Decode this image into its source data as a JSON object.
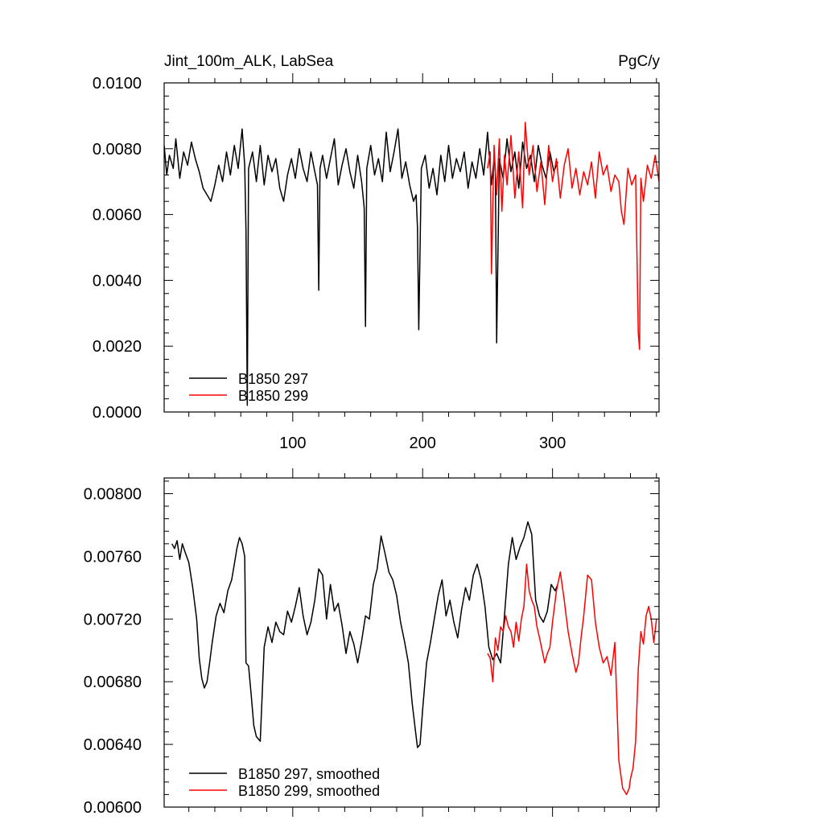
{
  "chart_data": [
    {
      "type": "line",
      "title_left": "Jint_100m_ALK, LabSea",
      "title_right": "PgC/y",
      "xlim": [
        1,
        382
      ],
      "ylim": [
        0.0,
        0.01
      ],
      "x_ticks": [
        100,
        200,
        300
      ],
      "x_tick_labels": [
        "100",
        "200",
        "300"
      ],
      "y_ticks": [
        0.0,
        0.002,
        0.004,
        0.006,
        0.008,
        0.01
      ],
      "y_tick_labels": [
        "0.0000",
        "0.0020",
        "0.0040",
        "0.0060",
        "0.0080",
        "0.0100"
      ],
      "legend_position": "bottom-left",
      "series": [
        {
          "name": "B1850 297",
          "color": "#000000",
          "x": [
            1,
            3,
            5,
            8,
            10,
            13,
            16,
            19,
            22,
            25,
            28,
            31,
            34,
            37,
            40,
            43,
            46,
            49,
            52,
            55,
            58,
            61,
            63,
            64,
            65,
            66,
            69,
            72,
            75,
            78,
            81,
            84,
            87,
            90,
            93,
            96,
            99,
            102,
            105,
            108,
            111,
            114,
            117,
            119,
            120,
            121,
            123,
            126,
            129,
            132,
            135,
            138,
            141,
            144,
            147,
            150,
            153,
            155,
            156,
            157,
            160,
            163,
            166,
            169,
            172,
            175,
            178,
            181,
            184,
            187,
            190,
            193,
            195,
            196,
            197,
            199,
            202,
            205,
            208,
            211,
            214,
            217,
            220,
            223,
            226,
            229,
            232,
            235,
            238,
            241,
            244,
            247,
            250,
            253,
            255,
            256,
            257,
            259,
            262,
            265,
            268,
            271,
            274,
            277,
            280,
            283,
            286,
            289,
            292,
            295,
            298,
            301,
            304
          ],
          "values": [
            0.0081,
            0.0072,
            0.0078,
            0.0074,
            0.0083,
            0.0071,
            0.0079,
            0.0075,
            0.0082,
            0.0077,
            0.0073,
            0.0068,
            0.0066,
            0.0064,
            0.0069,
            0.0075,
            0.007,
            0.0079,
            0.0072,
            0.0081,
            0.0074,
            0.0086,
            0.0075,
            0.0055,
            0.0002,
            0.0074,
            0.0079,
            0.007,
            0.0081,
            0.0069,
            0.0078,
            0.0073,
            0.0077,
            0.0068,
            0.0064,
            0.0072,
            0.0077,
            0.0071,
            0.008,
            0.0074,
            0.007,
            0.0079,
            0.0073,
            0.0069,
            0.0037,
            0.0074,
            0.0078,
            0.0071,
            0.0077,
            0.0083,
            0.0069,
            0.0075,
            0.008,
            0.0073,
            0.0068,
            0.0078,
            0.007,
            0.0062,
            0.0026,
            0.0074,
            0.0081,
            0.0072,
            0.0077,
            0.007,
            0.0085,
            0.0073,
            0.0079,
            0.0086,
            0.0071,
            0.0076,
            0.0069,
            0.0064,
            0.0066,
            0.0056,
            0.0025,
            0.0074,
            0.0078,
            0.0068,
            0.0074,
            0.0066,
            0.0078,
            0.007,
            0.0081,
            0.0071,
            0.0077,
            0.0073,
            0.0079,
            0.0068,
            0.0076,
            0.0071,
            0.008,
            0.0072,
            0.0085,
            0.0069,
            0.0077,
            0.0073,
            0.0021,
            0.0077,
            0.0071,
            0.0083,
            0.0073,
            0.0079,
            0.0068,
            0.0082,
            0.0074,
            0.0078,
            0.007,
            0.0081,
            0.0075,
            0.0071,
            0.0079,
            0.0073,
            0.0076
          ]
        },
        {
          "name": "B1850 299",
          "color": "#ff0000",
          "x": [
            250,
            252,
            253,
            255,
            257,
            259,
            261,
            263,
            265,
            268,
            271,
            274,
            277,
            279,
            282,
            285,
            288,
            291,
            294,
            297,
            300,
            303,
            306,
            309,
            312,
            315,
            318,
            321,
            324,
            327,
            330,
            333,
            336,
            339,
            342,
            345,
            348,
            351,
            353,
            355,
            358,
            361,
            364,
            366,
            367,
            368,
            370,
            373,
            376,
            379,
            382
          ],
          "values": [
            0.0074,
            0.0079,
            0.0042,
            0.0081,
            0.0066,
            0.0083,
            0.0061,
            0.0078,
            0.0069,
            0.0084,
            0.0065,
            0.0079,
            0.0062,
            0.0088,
            0.0072,
            0.0081,
            0.0067,
            0.0076,
            0.0063,
            0.0081,
            0.007,
            0.0077,
            0.0065,
            0.0075,
            0.008,
            0.0068,
            0.0074,
            0.0066,
            0.0073,
            0.0069,
            0.0076,
            0.0065,
            0.0079,
            0.0072,
            0.0075,
            0.0067,
            0.0072,
            0.007,
            0.0061,
            0.0057,
            0.0074,
            0.0069,
            0.0072,
            0.0024,
            0.0019,
            0.0071,
            0.0064,
            0.0075,
            0.0071,
            0.0078,
            0.007
          ]
        }
      ]
    },
    {
      "type": "line",
      "xlim": [
        1,
        382
      ],
      "ylim": [
        0.006,
        0.0081
      ],
      "x_ticks": [
        100,
        200,
        300
      ],
      "y_ticks": [
        0.006,
        0.0064,
        0.0068,
        0.0072,
        0.0076,
        0.008
      ],
      "y_tick_labels": [
        "0.00600",
        "0.00640",
        "0.00680",
        "0.00720",
        "0.00760",
        "0.00800"
      ],
      "legend_position": "bottom-left",
      "series": [
        {
          "name": "B1850 297, smoothed",
          "color": "#000000",
          "x": [
            7,
            9,
            11,
            13,
            15,
            17,
            20,
            23,
            26,
            28,
            30,
            32,
            34,
            36,
            38,
            41,
            44,
            47,
            50,
            53,
            55,
            57,
            59,
            61,
            63,
            64,
            66,
            68,
            70,
            72,
            75,
            78,
            81,
            84,
            87,
            90,
            93,
            96,
            99,
            102,
            105,
            108,
            111,
            114,
            117,
            120,
            123,
            126,
            129,
            132,
            135,
            138,
            141,
            144,
            147,
            150,
            153,
            156,
            159,
            162,
            165,
            168,
            171,
            174,
            177,
            180,
            183,
            186,
            189,
            192,
            194,
            196,
            198,
            200,
            203,
            206,
            209,
            212,
            215,
            218,
            221,
            224,
            227,
            230,
            233,
            236,
            239,
            242,
            245,
            248,
            251,
            254,
            257,
            260,
            263,
            266,
            269,
            272,
            275,
            278,
            281,
            284,
            287,
            290,
            293,
            296,
            299,
            302,
            304
          ],
          "values": [
            0.00768,
            0.00765,
            0.0077,
            0.00758,
            0.00768,
            0.00763,
            0.00756,
            0.0074,
            0.0072,
            0.00695,
            0.00682,
            0.00676,
            0.0068,
            0.00692,
            0.00705,
            0.00722,
            0.0073,
            0.00724,
            0.00738,
            0.00745,
            0.00755,
            0.00765,
            0.00772,
            0.00768,
            0.0076,
            0.00692,
            0.0069,
            0.00672,
            0.00652,
            0.00645,
            0.00642,
            0.00702,
            0.00715,
            0.00705,
            0.00718,
            0.00712,
            0.0071,
            0.00725,
            0.00718,
            0.00728,
            0.0074,
            0.00722,
            0.0071,
            0.00718,
            0.00732,
            0.00752,
            0.00748,
            0.0072,
            0.00742,
            0.00725,
            0.0073,
            0.00716,
            0.00698,
            0.00712,
            0.00704,
            0.00692,
            0.00706,
            0.00722,
            0.0072,
            0.00742,
            0.00752,
            0.00773,
            0.00762,
            0.0075,
            0.00745,
            0.00735,
            0.00718,
            0.00706,
            0.00692,
            0.00666,
            0.00652,
            0.00638,
            0.0064,
            0.00662,
            0.00692,
            0.00705,
            0.0072,
            0.00735,
            0.00745,
            0.00722,
            0.00732,
            0.00718,
            0.00708,
            0.00726,
            0.0074,
            0.00732,
            0.00748,
            0.00755,
            0.00745,
            0.00728,
            0.00702,
            0.00694,
            0.00698,
            0.00692,
            0.00722,
            0.00755,
            0.00772,
            0.00758,
            0.00766,
            0.00772,
            0.00782,
            0.00774,
            0.00732,
            0.00722,
            0.00718,
            0.00725,
            0.00742,
            0.00738,
            0.00742
          ]
        },
        {
          "name": "B1850 299, smoothed",
          "color": "#ff0000",
          "x": [
            250,
            252,
            254,
            256,
            258,
            260,
            262,
            264,
            266,
            268,
            270,
            272,
            274,
            276,
            278,
            280,
            282,
            284,
            286,
            288,
            290,
            292,
            294,
            296,
            298,
            300,
            303,
            306,
            309,
            312,
            315,
            318,
            320,
            322,
            324,
            327,
            330,
            333,
            336,
            339,
            342,
            345,
            348,
            351,
            354,
            357,
            359,
            360,
            362,
            364,
            366,
            368,
            370,
            372,
            374,
            376,
            378,
            380
          ],
          "values": [
            0.00698,
            0.00695,
            0.0068,
            0.00708,
            0.007,
            0.00715,
            0.00712,
            0.00722,
            0.00715,
            0.00712,
            0.00702,
            0.00718,
            0.00706,
            0.0072,
            0.00728,
            0.00755,
            0.00738,
            0.00732,
            0.00728,
            0.00715,
            0.00708,
            0.007,
            0.00692,
            0.00698,
            0.00702,
            0.00718,
            0.00738,
            0.0075,
            0.00732,
            0.00712,
            0.00698,
            0.00686,
            0.00692,
            0.00708,
            0.00722,
            0.00748,
            0.00745,
            0.00718,
            0.00702,
            0.00692,
            0.00696,
            0.00684,
            0.00705,
            0.0063,
            0.00612,
            0.00608,
            0.00612,
            0.00618,
            0.00625,
            0.00642,
            0.00688,
            0.00712,
            0.00704,
            0.00722,
            0.00728,
            0.0072,
            0.00705,
            0.0072
          ]
        }
      ]
    }
  ]
}
